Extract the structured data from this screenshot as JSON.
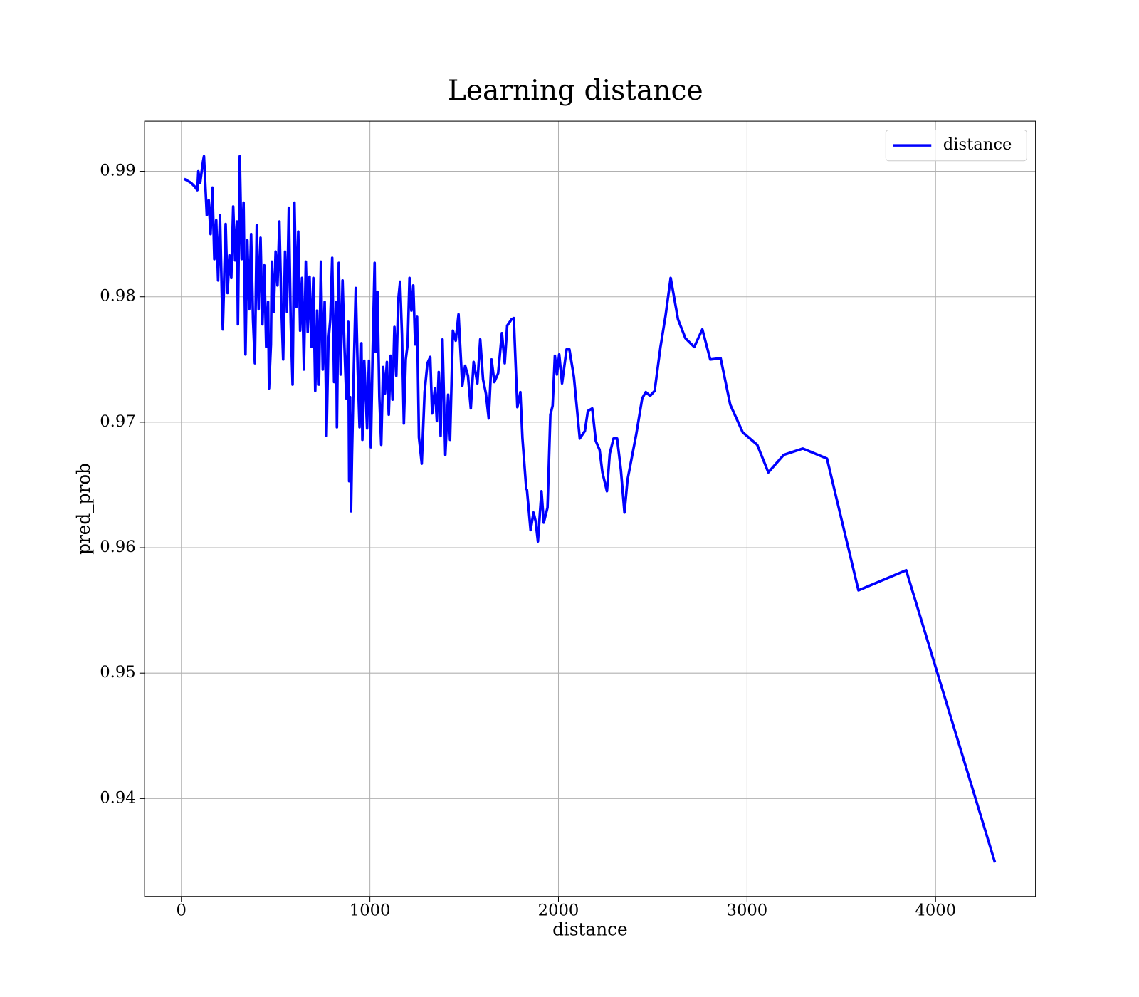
{
  "chart_data": {
    "type": "line",
    "title": "Learning distance",
    "x_label": "distance",
    "y_label": "pred_prob",
    "legend_position": "upper right",
    "grid": true,
    "xlim": [
      -195,
      4530
    ],
    "xticks": [
      0,
      1000,
      2000,
      3000,
      4000
    ],
    "ylim": [
      0.9322,
      0.994
    ],
    "yticks": [
      0.94,
      0.95,
      0.96,
      0.97,
      0.98,
      0.99
    ],
    "series": [
      {
        "name": "distance",
        "color": "#0000ff",
        "x": [
          15,
          50,
          70,
          85,
          90,
          100,
          115,
          120,
          135,
          145,
          155,
          165,
          175,
          185,
          195,
          205,
          215,
          220,
          235,
          245,
          255,
          265,
          275,
          285,
          295,
          300,
          310,
          320,
          330,
          340,
          350,
          360,
          370,
          380,
          390,
          400,
          410,
          420,
          430,
          440,
          450,
          460,
          465,
          475,
          480,
          490,
          500,
          510,
          520,
          530,
          540,
          550,
          560,
          570,
          580,
          590,
          600,
          610,
          620,
          630,
          640,
          650,
          660,
          670,
          680,
          690,
          700,
          710,
          720,
          730,
          740,
          750,
          760,
          770,
          780,
          790,
          800,
          810,
          820,
          825,
          835,
          845,
          855,
          865,
          875,
          885,
          890,
          895,
          900,
          905,
          915,
          925,
          935,
          945,
          955,
          960,
          970,
          985,
          995,
          1005,
          1015,
          1025,
          1030,
          1040,
          1050,
          1060,
          1070,
          1080,
          1090,
          1100,
          1110,
          1120,
          1130,
          1140,
          1150,
          1160,
          1170,
          1180,
          1190,
          1200,
          1210,
          1220,
          1230,
          1240,
          1250,
          1260,
          1275,
          1290,
          1305,
          1320,
          1330,
          1345,
          1355,
          1365,
          1375,
          1385,
          1400,
          1415,
          1425,
          1440,
          1455,
          1470,
          1490,
          1505,
          1520,
          1535,
          1550,
          1570,
          1585,
          1600,
          1615,
          1630,
          1645,
          1660,
          1680,
          1700,
          1715,
          1728,
          1751,
          1763,
          1782,
          1798,
          1809,
          1817,
          1829,
          1833,
          1852,
          1868,
          1879,
          1891,
          1910,
          1922,
          1942,
          1957,
          1969,
          1981,
          1992,
          2004,
          2019,
          2043,
          2058,
          2082,
          2113,
          2140,
          2156,
          2179,
          2198,
          2218,
          2233,
          2257,
          2272,
          2292,
          2311,
          2331,
          2350,
          2366,
          2412,
          2444,
          2463,
          2486,
          2510,
          2541,
          2568,
          2595,
          2634,
          2673,
          2720,
          2763,
          2805,
          2860,
          2911,
          2977,
          3054,
          3113,
          3195,
          3296,
          3424,
          3591,
          3844,
          4315
        ],
        "values": [
          0.9894,
          0.9891,
          0.9888,
          0.9885,
          0.99,
          0.9891,
          0.9908,
          0.9912,
          0.9865,
          0.9877,
          0.985,
          0.9887,
          0.983,
          0.9861,
          0.9813,
          0.9865,
          0.98,
          0.9774,
          0.9858,
          0.9803,
          0.9833,
          0.9815,
          0.9872,
          0.9829,
          0.986,
          0.9778,
          0.9912,
          0.983,
          0.9875,
          0.9754,
          0.9845,
          0.979,
          0.985,
          0.9782,
          0.9747,
          0.9857,
          0.979,
          0.9847,
          0.9778,
          0.9825,
          0.976,
          0.9796,
          0.9727,
          0.9762,
          0.9828,
          0.9788,
          0.9836,
          0.9809,
          0.986,
          0.9795,
          0.975,
          0.9836,
          0.9788,
          0.9871,
          0.978,
          0.973,
          0.9875,
          0.9792,
          0.9852,
          0.9773,
          0.9815,
          0.9742,
          0.9828,
          0.9772,
          0.9816,
          0.976,
          0.9815,
          0.9725,
          0.9789,
          0.973,
          0.9828,
          0.9742,
          0.9796,
          0.9689,
          0.9765,
          0.9782,
          0.9831,
          0.9732,
          0.9796,
          0.9696,
          0.9827,
          0.9738,
          0.9813,
          0.976,
          0.9719,
          0.978,
          0.9653,
          0.972,
          0.9629,
          0.9674,
          0.9745,
          0.9807,
          0.9743,
          0.9696,
          0.9763,
          0.9686,
          0.9749,
          0.9695,
          0.9749,
          0.968,
          0.976,
          0.9827,
          0.9756,
          0.9804,
          0.972,
          0.9682,
          0.9744,
          0.9723,
          0.9748,
          0.9706,
          0.9753,
          0.9718,
          0.9776,
          0.9737,
          0.9797,
          0.9812,
          0.977,
          0.9699,
          0.975,
          0.9762,
          0.9815,
          0.9789,
          0.9809,
          0.9762,
          0.9784,
          0.9688,
          0.9667,
          0.9724,
          0.9747,
          0.9752,
          0.9707,
          0.9727,
          0.9701,
          0.974,
          0.9689,
          0.9766,
          0.9674,
          0.9722,
          0.9686,
          0.9773,
          0.9765,
          0.9786,
          0.9729,
          0.9745,
          0.9737,
          0.9711,
          0.9748,
          0.9731,
          0.9766,
          0.9734,
          0.9723,
          0.9703,
          0.975,
          0.9732,
          0.9739,
          0.9771,
          0.9747,
          0.9777,
          0.9782,
          0.9783,
          0.9712,
          0.9724,
          0.9687,
          0.9671,
          0.9647,
          0.9646,
          0.9614,
          0.9628,
          0.9621,
          0.9605,
          0.9645,
          0.962,
          0.9632,
          0.9706,
          0.9713,
          0.9753,
          0.9738,
          0.9754,
          0.9731,
          0.9758,
          0.9758,
          0.9736,
          0.9687,
          0.9693,
          0.9709,
          0.9711,
          0.9685,
          0.9678,
          0.966,
          0.9645,
          0.9675,
          0.9687,
          0.9687,
          0.9662,
          0.9628,
          0.9654,
          0.969,
          0.9719,
          0.9724,
          0.9721,
          0.9725,
          0.976,
          0.9785,
          0.9815,
          0.9782,
          0.9767,
          0.976,
          0.9774,
          0.975,
          0.9751,
          0.9714,
          0.9692,
          0.9682,
          0.966,
          0.9674,
          0.9679,
          0.9671,
          0.9566,
          0.9582,
          0.9349
        ]
      }
    ]
  }
}
